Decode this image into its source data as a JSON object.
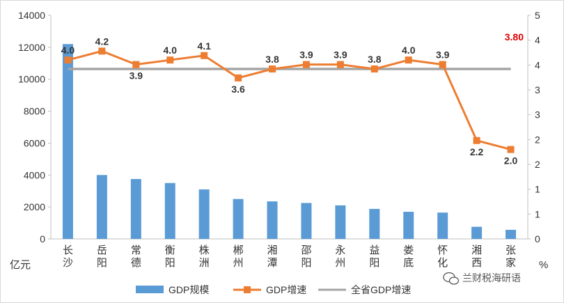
{
  "chart_data": {
    "type": "bar+line",
    "categories": [
      "长沙",
      "岳阳",
      "常德",
      "衡阳",
      "株洲",
      "郴州",
      "湘潭",
      "邵阳",
      "永州",
      "益阳",
      "娄底",
      "怀化",
      "湘西",
      "张家"
    ],
    "series": [
      {
        "name": "GDP规模",
        "type": "bar",
        "axis": "left",
        "color": "#5b9bd5",
        "values": [
          12200,
          4000,
          3750,
          3500,
          3100,
          2500,
          2350,
          2250,
          2100,
          1880,
          1700,
          1650,
          760,
          570
        ]
      },
      {
        "name": "GDP增速",
        "type": "line",
        "axis": "right",
        "color": "#ed7d31",
        "values": [
          4.0,
          4.2,
          3.9,
          4.0,
          4.1,
          3.6,
          3.8,
          3.9,
          3.9,
          3.8,
          4.0,
          3.9,
          2.2,
          2.0
        ],
        "labels": [
          "4.0",
          "4.2",
          "3.9",
          "4.0",
          "4.1",
          "3.6",
          "3.8",
          "3.9",
          "3.9",
          "3.8",
          "4.0",
          "3.9",
          "2.2",
          "2.0"
        ]
      },
      {
        "name": "全省GDP增速",
        "type": "line",
        "axis": "right",
        "color": "#a5a5a5",
        "value": 3.8,
        "label": "3.80",
        "label_color": "#e00000"
      }
    ],
    "left_axis": {
      "label": "亿元",
      "min": 0,
      "max": 14000,
      "ticks": [
        "0",
        "2000",
        "4000",
        "6000",
        "8000",
        "10000",
        "12000",
        "14000"
      ]
    },
    "right_axis": {
      "label": "%",
      "min": 0,
      "max": 5,
      "ticks": [
        "0",
        "1",
        "1",
        "2",
        "2",
        "3",
        "3",
        "4",
        "4",
        "5"
      ]
    },
    "legend_position": "bottom",
    "grid": false
  },
  "watermark": {
    "text": "兰财税海研语",
    "icon": "wechat-icon"
  }
}
